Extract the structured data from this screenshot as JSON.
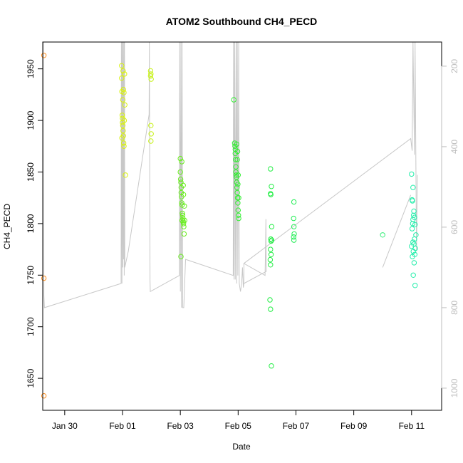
{
  "chart_data": {
    "type": "scatter",
    "title": "ATOM2 Southbound CH4_PECD",
    "xlabel": "Date",
    "ylabel": "CH4_PECD",
    "x_unit": "days since Jan 28",
    "xlim": [
      1.24,
      15.04
    ],
    "ylim": [
      1619,
      1976
    ],
    "y2lim": [
      1055,
      140
    ],
    "x_ticks": [
      {
        "value": 2,
        "label": "Jan 30"
      },
      {
        "value": 4,
        "label": "Feb 01"
      },
      {
        "value": 6,
        "label": "Feb 03"
      },
      {
        "value": 8,
        "label": "Feb 05"
      },
      {
        "value": 10,
        "label": "Feb 07"
      },
      {
        "value": 12,
        "label": "Feb 09"
      },
      {
        "value": 14,
        "label": "Feb 11"
      }
    ],
    "y_ticks": [
      {
        "value": 1650,
        "label": "1650"
      },
      {
        "value": 1700,
        "label": "1700"
      },
      {
        "value": 1750,
        "label": "1750"
      },
      {
        "value": 1800,
        "label": "1800"
      },
      {
        "value": 1850,
        "label": "1850"
      },
      {
        "value": 1900,
        "label": "1900"
      },
      {
        "value": 1950,
        "label": "1950"
      }
    ],
    "y2_ticks": [
      {
        "value": 200,
        "label": "200"
      },
      {
        "value": 400,
        "label": "400"
      },
      {
        "value": 600,
        "label": "600"
      },
      {
        "value": 800,
        "label": "800"
      },
      {
        "value": 1000,
        "label": "1000"
      }
    ],
    "grid": false,
    "line_color": "#c8c8c8",
    "altitude_trace": [
      [
        1.27,
        140
      ],
      [
        1.28,
        770
      ],
      [
        1.3,
        800
      ],
      [
        3.95,
        740
      ],
      [
        3.96,
        140
      ],
      [
        3.98,
        740
      ],
      [
        3.99,
        140
      ],
      [
        4.01,
        700
      ],
      [
        4.02,
        140
      ],
      [
        4.04,
        680
      ],
      [
        4.05,
        140
      ],
      [
        4.06,
        720
      ],
      [
        4.07,
        140
      ],
      [
        4.08,
        700
      ],
      [
        4.2,
        660
      ],
      [
        4.92,
        320
      ],
      [
        4.93,
        140
      ],
      [
        4.95,
        730
      ],
      [
        4.96,
        760
      ],
      [
        5.97,
        720
      ],
      [
        5.98,
        140
      ],
      [
        6.0,
        760
      ],
      [
        6.02,
        140
      ],
      [
        6.04,
        800
      ],
      [
        6.06,
        140
      ],
      [
        6.08,
        800
      ],
      [
        6.12,
        800
      ],
      [
        6.18,
        680
      ],
      [
        7.83,
        720
      ],
      [
        7.84,
        140
      ],
      [
        7.86,
        730
      ],
      [
        7.88,
        140
      ],
      [
        7.9,
        730
      ],
      [
        7.93,
        140
      ],
      [
        7.95,
        740
      ],
      [
        7.97,
        140
      ],
      [
        7.99,
        720
      ],
      [
        8.02,
        140
      ],
      [
        8.04,
        740
      ],
      [
        8.08,
        760
      ],
      [
        8.12,
        740
      ],
      [
        8.15,
        700
      ],
      [
        8.18,
        750
      ],
      [
        8.2,
        740
      ],
      [
        8.2,
        690
      ],
      [
        8.93,
        720
      ],
      [
        8.95,
        640
      ],
      [
        8.96,
        580
      ],
      [
        8.97,
        710
      ],
      [
        8.2,
        740
      ],
      [
        8.2,
        690
      ],
      [
        13.97,
        380
      ],
      [
        14.02,
        410
      ],
      [
        14.05,
        140
      ],
      [
        14.1,
        420
      ],
      [
        14.12,
        140
      ],
      [
        14.17,
        660
      ],
      [
        14.2,
        470
      ]
    ],
    "extra_segment": [
      [
        13.0,
        700
      ],
      [
        13.97,
        520
      ]
    ],
    "series": [
      {
        "name": "",
        "color": "#ff8c1a",
        "points": [
          [
            1.28,
            1963
          ],
          [
            1.28,
            1747
          ],
          [
            1.28,
            1633
          ]
        ]
      },
      {
        "name": "",
        "color": "#d9f20d",
        "points": [
          [
            3.97,
            1953
          ],
          [
            3.97,
            1941
          ],
          [
            3.98,
            1928
          ],
          [
            3.99,
            1905
          ],
          [
            4.0,
            1902
          ],
          [
            4.0,
            1898
          ],
          [
            4.01,
            1895
          ],
          [
            4.02,
            1890
          ],
          [
            4.03,
            1885
          ],
          [
            4.04,
            1878
          ],
          [
            4.05,
            1875
          ],
          [
            4.03,
            1930
          ],
          [
            4.05,
            1927
          ],
          [
            4.07,
            1945
          ],
          [
            4.08,
            1915
          ],
          [
            4.02,
            1948
          ],
          [
            4.06,
            1900
          ],
          [
            4.1,
            1847
          ],
          [
            3.98,
            1883
          ],
          [
            4.01,
            1920
          ]
        ]
      },
      {
        "name": "",
        "color": "#c8f21a",
        "points": [
          [
            4.97,
            1948
          ],
          [
            4.97,
            1943
          ],
          [
            4.98,
            1945
          ],
          [
            4.99,
            1940
          ],
          [
            4.98,
            1895
          ],
          [
            4.99,
            1887
          ],
          [
            4.98,
            1880
          ]
        ]
      },
      {
        "name": "",
        "color": "#66ee1a",
        "points": [
          [
            6.0,
            1863
          ],
          [
            6.0,
            1850
          ],
          [
            6.01,
            1843
          ],
          [
            6.02,
            1840
          ],
          [
            6.03,
            1835
          ],
          [
            6.03,
            1830
          ],
          [
            6.04,
            1826
          ],
          [
            6.05,
            1820
          ],
          [
            6.06,
            1818
          ],
          [
            6.07,
            1810
          ],
          [
            6.08,
            1808
          ],
          [
            6.09,
            1805
          ],
          [
            6.1,
            1802
          ],
          [
            6.11,
            1800
          ],
          [
            6.12,
            1797
          ],
          [
            6.13,
            1790
          ],
          [
            6.05,
            1860
          ],
          [
            6.1,
            1837
          ],
          [
            6.14,
            1817
          ],
          [
            6.02,
            1768
          ],
          [
            6.06,
            1803
          ],
          [
            6.15,
            1803
          ],
          [
            6.11,
            1828
          ]
        ]
      },
      {
        "name": "",
        "color": "#33ee33",
        "points": [
          [
            7.85,
            1920
          ],
          [
            7.88,
            1878
          ],
          [
            7.89,
            1875
          ],
          [
            7.9,
            1872
          ],
          [
            7.9,
            1868
          ],
          [
            7.91,
            1862
          ],
          [
            7.92,
            1855
          ],
          [
            7.92,
            1850
          ],
          [
            7.93,
            1847
          ],
          [
            7.94,
            1845
          ],
          [
            7.95,
            1840
          ],
          [
            7.96,
            1835
          ],
          [
            7.97,
            1830
          ],
          [
            7.98,
            1825
          ],
          [
            7.99,
            1820
          ],
          [
            8.0,
            1813
          ],
          [
            8.01,
            1808
          ],
          [
            8.02,
            1805
          ],
          [
            7.95,
            1877
          ],
          [
            7.98,
            1870
          ],
          [
            8.0,
            1847
          ],
          [
            8.02,
            1825
          ],
          [
            7.97,
            1862
          ],
          [
            7.99,
            1838
          ]
        ]
      },
      {
        "name": "",
        "color": "#22ee44",
        "points": [
          [
            9.12,
            1853
          ],
          [
            9.15,
            1836
          ],
          [
            9.12,
            1829
          ],
          [
            9.13,
            1828
          ],
          [
            9.16,
            1797
          ],
          [
            9.13,
            1785
          ],
          [
            9.14,
            1783
          ],
          [
            9.16,
            1784
          ],
          [
            9.12,
            1775
          ],
          [
            9.14,
            1770
          ],
          [
            9.11,
            1765
          ],
          [
            9.12,
            1760
          ],
          [
            9.1,
            1726
          ],
          [
            9.12,
            1717
          ],
          [
            9.15,
            1662
          ]
        ]
      },
      {
        "name": "",
        "color": "#22ee55",
        "points": [
          [
            9.93,
            1821
          ],
          [
            9.92,
            1805
          ],
          [
            9.93,
            1797
          ],
          [
            9.94,
            1790
          ],
          [
            9.92,
            1787
          ],
          [
            9.93,
            1784
          ]
        ]
      },
      {
        "name": "",
        "color": "#33ee77",
        "points": [
          [
            13.0,
            1789
          ]
        ]
      },
      {
        "name": "",
        "color": "#22eeaa",
        "points": [
          [
            14.0,
            1848
          ],
          [
            14.05,
            1835
          ],
          [
            14.02,
            1823
          ],
          [
            14.03,
            1822
          ],
          [
            14.08,
            1812
          ],
          [
            14.07,
            1808
          ],
          [
            14.1,
            1806
          ],
          [
            14.05,
            1804
          ],
          [
            14.04,
            1800
          ],
          [
            14.12,
            1799
          ],
          [
            14.02,
            1795
          ],
          [
            14.15,
            1789
          ],
          [
            14.1,
            1785
          ],
          [
            14.05,
            1782
          ],
          [
            14.08,
            1780
          ],
          [
            14.0,
            1778
          ],
          [
            14.13,
            1776
          ],
          [
            14.06,
            1773
          ],
          [
            14.11,
            1770
          ],
          [
            14.03,
            1768
          ],
          [
            14.09,
            1762
          ],
          [
            14.06,
            1750
          ],
          [
            14.12,
            1740
          ]
        ]
      }
    ]
  }
}
